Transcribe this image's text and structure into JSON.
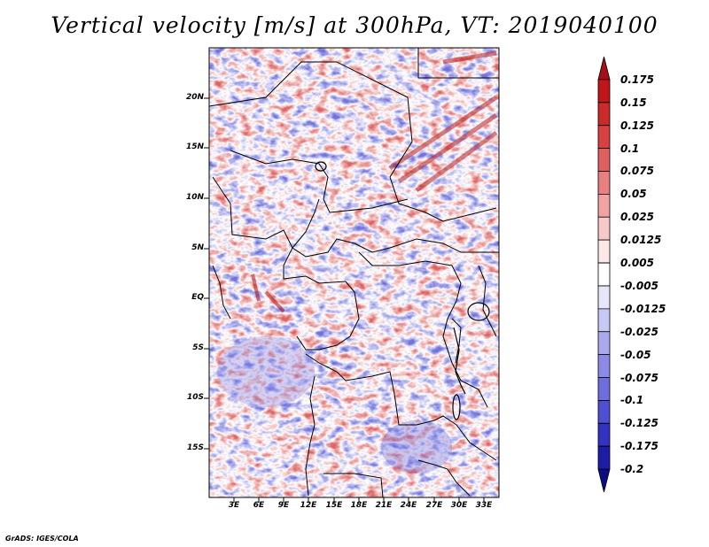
{
  "title": "Vertical velocity [m/s] at 300hPa, VT: 2019040100",
  "lat_labels": [
    "20N",
    "15N",
    "10N",
    "5N",
    "EQ",
    "5S",
    "10S",
    "15S"
  ],
  "lon_labels": [
    "3E",
    "6E",
    "9E",
    "12E",
    "15E",
    "18E",
    "21E",
    "24E",
    "27E",
    "30E",
    "33E"
  ],
  "colorbar": {
    "labels": [
      "0.175",
      "0.15",
      "0.125",
      "0.1",
      "0.075",
      "0.05",
      "0.025",
      "0.0125",
      "0.005",
      "-0.005",
      "-0.0125",
      "-0.025",
      "-0.05",
      "-0.075",
      "-0.1",
      "-0.125",
      "-0.175",
      "-0.2"
    ],
    "colors": [
      "#a50f15",
      "#c0161b",
      "#cb2a2a",
      "#d94141",
      "#e06060",
      "#e88080",
      "#f1a3a3",
      "#f7c9c9",
      "#fde8e8",
      "#ffffff",
      "#e6e6fb",
      "#c8c8f4",
      "#aaa9ee",
      "#8b8ae6",
      "#6d6ddd",
      "#4f4fd2",
      "#3232c3",
      "#1c1ca6",
      "#0c0c85"
    ]
  },
  "credit": "GrADS: IGES/COLA"
}
